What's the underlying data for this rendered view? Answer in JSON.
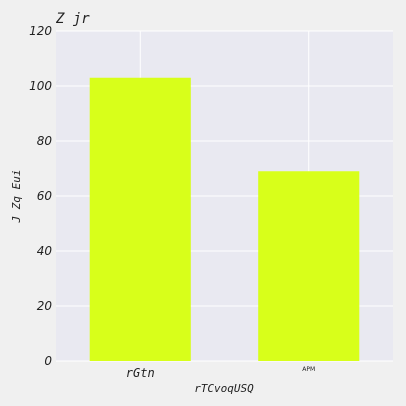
{
  "chart_data": {
    "type": "bar",
    "title": "Z jr",
    "xlabel": "rTCvoqUSQ",
    "ylabel": "J Zq Eui",
    "categories": [
      "rGtn",
      "APM"
    ],
    "values": [
      103,
      69
    ],
    "ylim": [
      0,
      120
    ],
    "yticks": [
      0,
      20,
      40,
      60,
      80,
      100,
      120
    ],
    "grid": true,
    "bar_color": "#d8ff1a",
    "plot_background": "#e9e9f1",
    "figure_background": "#f0f0f0",
    "grid_color": "#ffffff",
    "text_color": "#222222"
  }
}
